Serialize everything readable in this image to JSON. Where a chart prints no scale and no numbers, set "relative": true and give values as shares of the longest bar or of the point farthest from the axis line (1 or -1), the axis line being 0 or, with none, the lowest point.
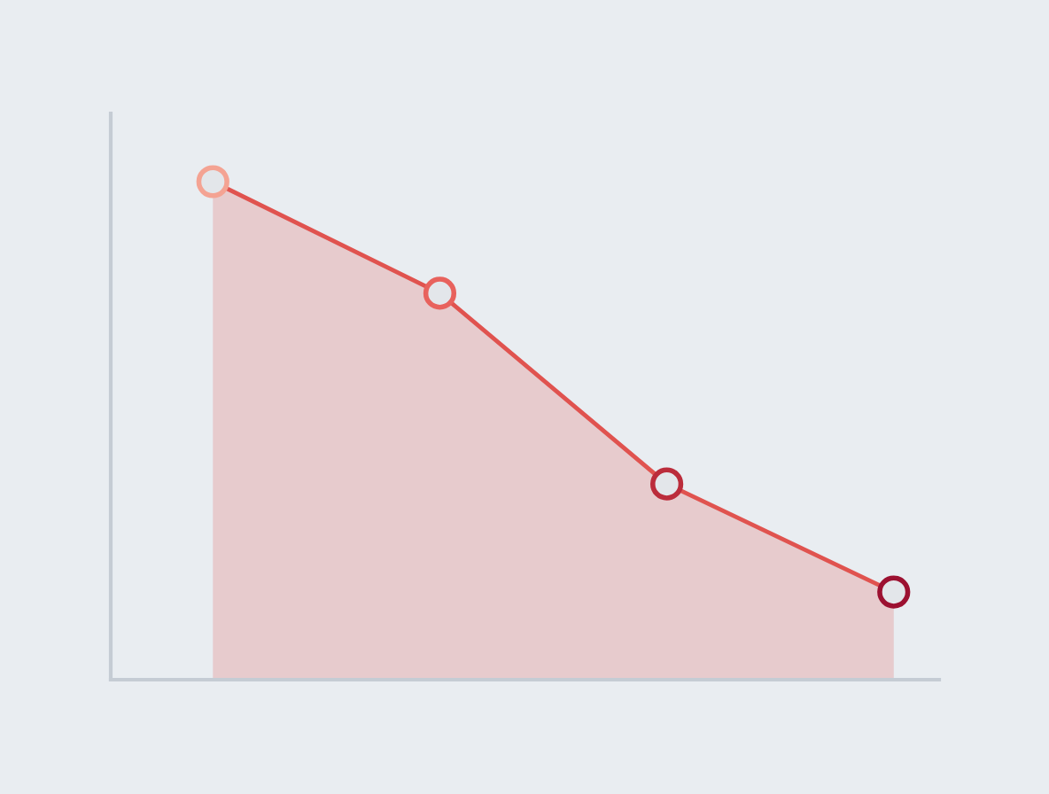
{
  "chart_data": {
    "type": "area",
    "relative": true,
    "categories": [
      null,
      null,
      null,
      null
    ],
    "series": [
      {
        "color": "#e0534f",
        "colors": [
          "#f4a393",
          "#e8625d",
          "#bb2c3b",
          "#9c1131"
        ],
        "values": [
          1,
          0.776,
          0.393,
          0.176
        ]
      }
    ],
    "marker": "circle",
    "grid": false,
    "legend": false
  }
}
